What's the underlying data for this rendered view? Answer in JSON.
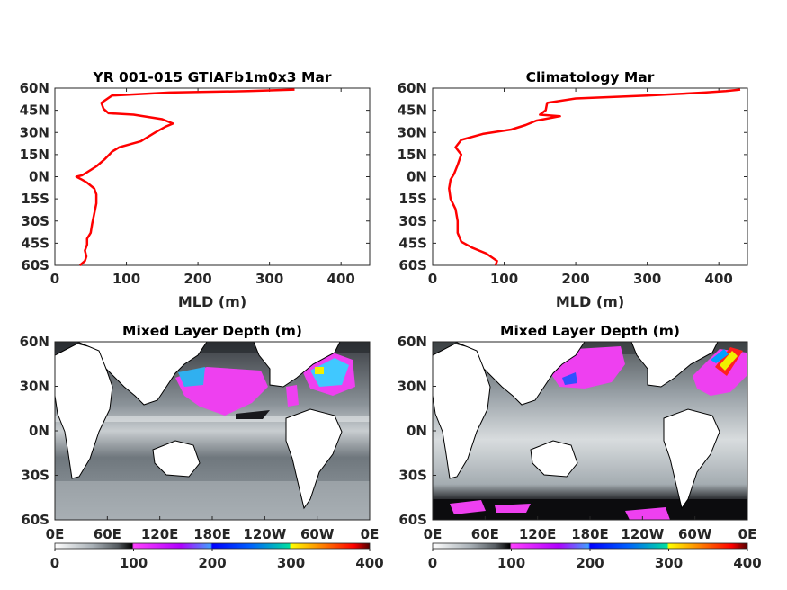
{
  "chart_data": [
    {
      "type": "line",
      "title": "YR 001-015 GTIAFb1m0x3 Mar",
      "xlabel": "MLD (m)",
      "xlim": [
        0,
        440
      ],
      "ylim": [
        -60,
        60
      ],
      "xticks": [
        "0",
        "100",
        "200",
        "300",
        "400"
      ],
      "yticks": [
        "60N",
        "45N",
        "30N",
        "15N",
        "0N",
        "15S",
        "30S",
        "45S",
        "60S"
      ],
      "series": [
        {
          "color": "#ff0000",
          "points": [
            [
              35,
              -60
            ],
            [
              42,
              -57
            ],
            [
              44,
              -54
            ],
            [
              42,
              -50
            ],
            [
              45,
              -46
            ],
            [
              45,
              -42
            ],
            [
              50,
              -38
            ],
            [
              52,
              -32
            ],
            [
              55,
              -25
            ],
            [
              58,
              -18
            ],
            [
              58,
              -12
            ],
            [
              55,
              -8
            ],
            [
              45,
              -4
            ],
            [
              38,
              -2
            ],
            [
              30,
              0
            ],
            [
              38,
              1
            ],
            [
              45,
              3
            ],
            [
              58,
              7
            ],
            [
              70,
              12
            ],
            [
              80,
              17
            ],
            [
              90,
              20
            ],
            [
              120,
              24
            ],
            [
              140,
              30
            ],
            [
              155,
              34
            ],
            [
              165,
              36
            ],
            [
              150,
              39
            ],
            [
              110,
              42
            ],
            [
              75,
              43
            ],
            [
              68,
              46
            ],
            [
              65,
              50
            ],
            [
              80,
              55
            ],
            [
              160,
              57
            ],
            [
              270,
              58
            ],
            [
              335,
              59
            ]
          ]
        }
      ]
    },
    {
      "type": "line",
      "title": "Climatology Mar",
      "xlabel": "MLD (m)",
      "xlim": [
        0,
        440
      ],
      "ylim": [
        -60,
        60
      ],
      "xticks": [
        "0",
        "100",
        "200",
        "300",
        "400"
      ],
      "yticks": [
        "60N",
        "45N",
        "30N",
        "15N",
        "0N",
        "15S",
        "30S",
        "45S",
        "60S"
      ],
      "series": [
        {
          "color": "#ff0000",
          "points": [
            [
              88,
              -60
            ],
            [
              90,
              -57
            ],
            [
              75,
              -52
            ],
            [
              55,
              -48
            ],
            [
              40,
              -44
            ],
            [
              35,
              -38
            ],
            [
              35,
              -30
            ],
            [
              32,
              -22
            ],
            [
              25,
              -15
            ],
            [
              23,
              -8
            ],
            [
              25,
              -2
            ],
            [
              30,
              2
            ],
            [
              35,
              8
            ],
            [
              40,
              15
            ],
            [
              32,
              20
            ],
            [
              40,
              25
            ],
            [
              70,
              29
            ],
            [
              110,
              32
            ],
            [
              130,
              35
            ],
            [
              145,
              38
            ],
            [
              178,
              41
            ],
            [
              150,
              42
            ],
            [
              158,
              45
            ],
            [
              160,
              50
            ],
            [
              200,
              53
            ],
            [
              300,
              55
            ],
            [
              380,
              57
            ],
            [
              410,
              58
            ],
            [
              430,
              59
            ]
          ]
        }
      ]
    },
    {
      "type": "heatmap",
      "title": "Mixed Layer Depth (m)",
      "xticks": [
        "0E",
        "60E",
        "120E",
        "180E",
        "120W",
        "60W",
        "0E"
      ],
      "yticks": [
        "60N",
        "30N",
        "0N",
        "30S",
        "60S"
      ],
      "colorbar_range": [
        0,
        400
      ],
      "colorbar_ticks": [
        "0",
        "100",
        "200",
        "300",
        "400"
      ]
    },
    {
      "type": "heatmap",
      "title": "Mixed Layer Depth (m)",
      "xticks": [
        "0E",
        "60E",
        "120E",
        "180E",
        "120W",
        "60W",
        "0E"
      ],
      "yticks": [
        "60N",
        "30N",
        "0N",
        "30S",
        "60S"
      ],
      "colorbar_range": [
        0,
        400
      ],
      "colorbar_ticks": [
        "0",
        "100",
        "200",
        "300",
        "400"
      ]
    }
  ],
  "colors": {
    "line": "#ff0000",
    "colormap": [
      "#ffffff",
      "#b8c0c4",
      "#707a80",
      "#2a2a2e",
      "#000000",
      "#ff40ff",
      "#c000ff",
      "#5050ff",
      "#2080ff",
      "#00c0ff",
      "#00e0a0",
      "#f0f000",
      "#ff8000",
      "#ff0000",
      "#600000"
    ]
  }
}
